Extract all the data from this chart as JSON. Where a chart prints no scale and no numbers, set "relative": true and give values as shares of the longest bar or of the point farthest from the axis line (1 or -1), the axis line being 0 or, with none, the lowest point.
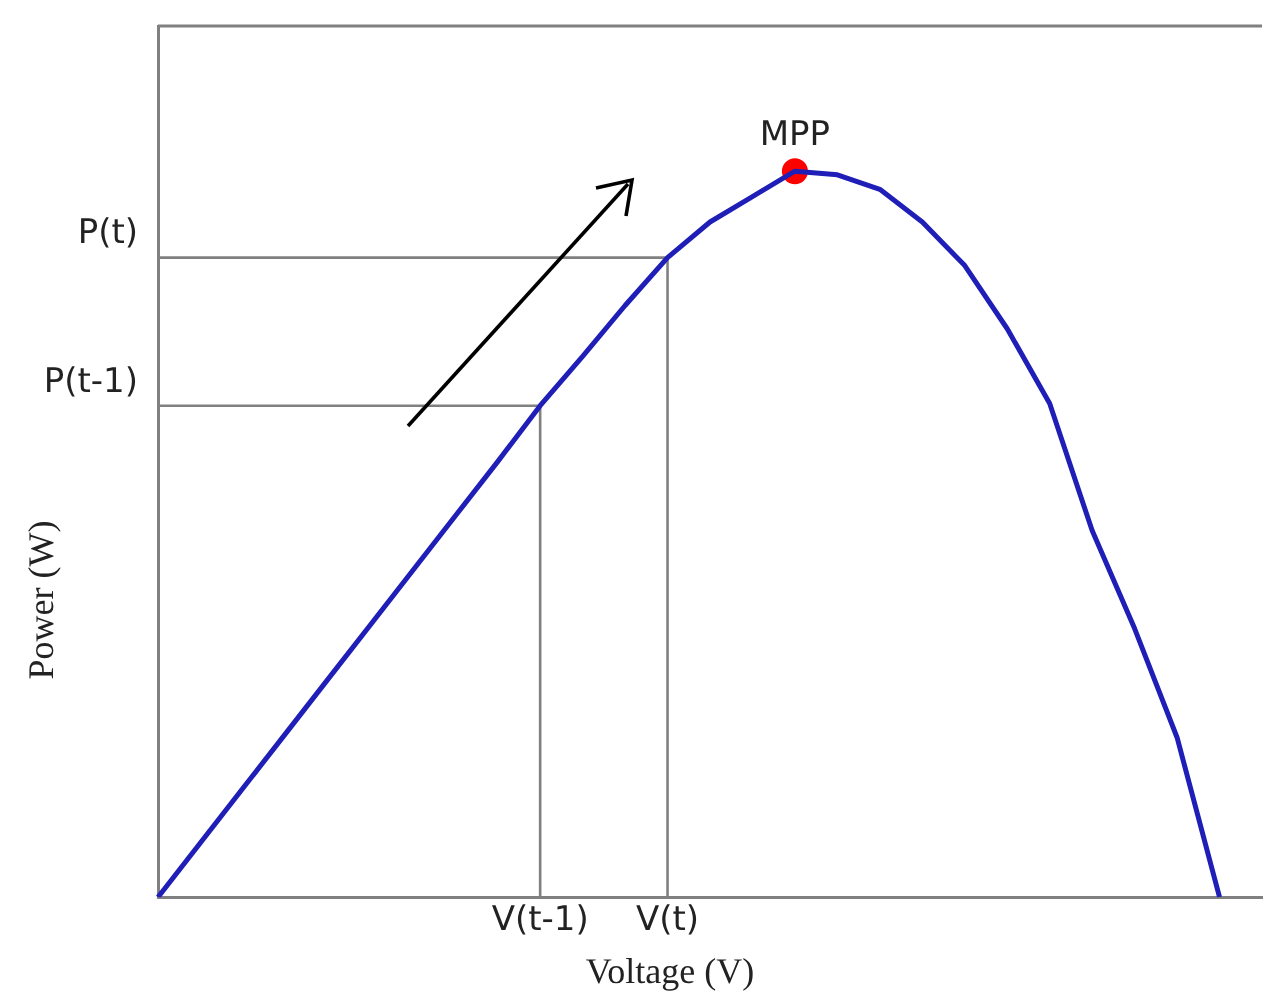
{
  "chart_data": {
    "type": "line",
    "xlabel": "Voltage (V)",
    "ylabel": "Power (W)",
    "relative": true,
    "categories": [
      null,
      null,
      null,
      null,
      null,
      null,
      null,
      null,
      null,
      "V(t-1)",
      null,
      null,
      "V(t)",
      null,
      null,
      null,
      null,
      null,
      null,
      null,
      null,
      null,
      null,
      null,
      null,
      null,
      null
    ],
    "series": [
      {
        "color": "#1f1fb8",
        "values": [
          0,
          0.075,
          0.15,
          0.225,
          0.3,
          0.375,
          0.45,
          0.525,
          0.6,
          0.677,
          0.745,
          0.815,
          0.881,
          0.93,
          0.965,
          1,
          0.995,
          0.975,
          0.93,
          0.87,
          0.783,
          0.68,
          0.505,
          0.37,
          0.22,
          0,
          null
        ]
      },
      {
        "type": "scatter",
        "color": "#ff0000",
        "values": [
          null,
          null,
          null,
          null,
          null,
          null,
          null,
          null,
          null,
          null,
          null,
          null,
          null,
          null,
          null,
          1,
          null,
          null,
          null,
          null,
          null,
          null,
          null,
          null,
          null,
          null,
          null
        ]
      }
    ],
    "ref_lines": [
      {
        "axis": "y",
        "value": 0.881,
        "label": "P(t)",
        "color": "#808080"
      },
      {
        "axis": "y",
        "value": 0.677,
        "label": "P(t-1)",
        "color": "#808080"
      },
      {
        "axis": "x",
        "value": "V(t-1)",
        "color": "#808080"
      },
      {
        "axis": "x",
        "value": "V(t)",
        "color": "#808080"
      }
    ],
    "annotations": [
      "MPP"
    ],
    "legend": false,
    "grid": false
  }
}
